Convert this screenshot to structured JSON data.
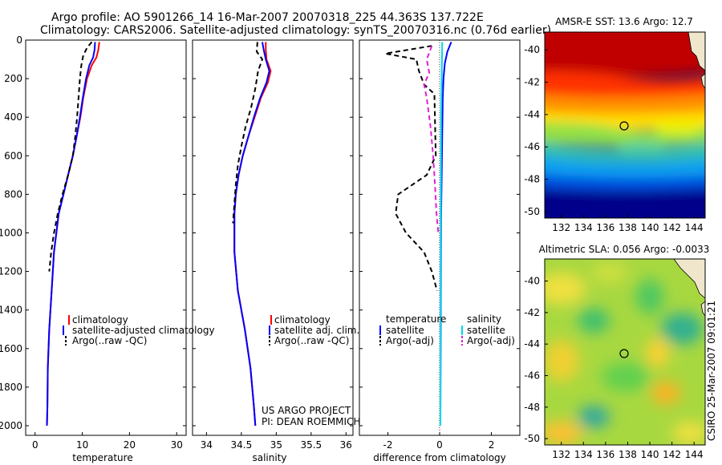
{
  "header": {
    "line1": "Argo profile: AO 5901266_14 16-Mar-2007 20070318_225 44.363S 137.722E",
    "line2": "Climatology: CARS2006. Satellite-adjusted climatology: synTS_20070316.nc (0.76d earlier)"
  },
  "colors": {
    "climatology": "#ff0000",
    "satellite": "#0000ff",
    "argo": "#000000",
    "salinity_sat": "#00d8e8",
    "salinity_argo": "#e020d0"
  },
  "chart_data": [
    {
      "type": "line",
      "name": "temperature-panel",
      "xlabel": "temperature",
      "ylabel": "",
      "xlim": [
        -2,
        32
      ],
      "ylim": [
        2050,
        0
      ],
      "xticks": [
        0,
        10,
        20,
        30
      ],
      "yticks": [
        0,
        200,
        400,
        600,
        800,
        1000,
        1200,
        1400,
        1600,
        1800,
        2000
      ],
      "series": [
        {
          "name": "climatology",
          "color": "#ff0000",
          "dash": "none",
          "x": [
            13.6,
            13.4,
            13.0,
            12.0,
            11.0,
            10.2,
            9.6,
            8.8,
            8.0,
            7.0,
            6.0,
            5.0,
            4.0,
            3.5,
            3.0,
            2.7,
            2.6,
            2.5
          ],
          "y": [
            10,
            50,
            90,
            130,
            200,
            300,
            400,
            500,
            600,
            700,
            800,
            900,
            1100,
            1300,
            1500,
            1700,
            1900,
            2000
          ]
        },
        {
          "name": "satellite-adjusted climatology",
          "color": "#0000ff",
          "dash": "none",
          "x": [
            12.7,
            12.6,
            12.3,
            11.5,
            10.8,
            10.1,
            9.5,
            8.8,
            8.0,
            7.0,
            6.0,
            5.0,
            4.0,
            3.5,
            3.0,
            2.7,
            2.6,
            2.5
          ],
          "y": [
            10,
            50,
            90,
            130,
            200,
            300,
            400,
            500,
            600,
            700,
            800,
            900,
            1100,
            1300,
            1500,
            1700,
            1900,
            2000
          ]
        },
        {
          "name": "Argo(..raw -QC)",
          "color": "#000000",
          "dash": "6,4",
          "x": [
            12.0,
            11.0,
            10.2,
            9.8,
            9.5,
            9.2,
            8.9,
            8.5,
            8.0,
            7.0,
            5.8,
            4.8,
            4.0,
            3.4,
            3.0
          ],
          "y": [
            10,
            40,
            80,
            130,
            200,
            300,
            400,
            500,
            600,
            700,
            800,
            900,
            1000,
            1100,
            1200
          ]
        }
      ],
      "legend": [
        "climatology",
        "satellite-adjusted climatology",
        "Argo(..raw -QC)"
      ]
    },
    {
      "type": "line",
      "name": "salinity-panel",
      "xlabel": "salinity",
      "ylabel": "",
      "xlim": [
        33.8,
        36.1
      ],
      "ylim": [
        2050,
        0
      ],
      "xticks": [
        34,
        34.5,
        35,
        35.5,
        36
      ],
      "xticklabels": [
        "34",
        "34.5",
        "35",
        "35.5",
        "36"
      ],
      "series": [
        {
          "name": "climatology",
          "color": "#ff0000",
          "dash": "none",
          "x": [
            34.85,
            34.85,
            34.86,
            34.92,
            34.88,
            34.78,
            34.69,
            34.6,
            34.52,
            34.46,
            34.42,
            34.4,
            34.4,
            34.45,
            34.55,
            34.63,
            34.68,
            34.7
          ],
          "y": [
            10,
            50,
            100,
            160,
            220,
            300,
            400,
            500,
            600,
            700,
            800,
            900,
            1100,
            1300,
            1500,
            1700,
            1900,
            2000
          ]
        },
        {
          "name": "satellite adj. clim.",
          "color": "#0000ff",
          "dash": "none",
          "x": [
            34.8,
            34.82,
            34.85,
            34.9,
            34.86,
            34.77,
            34.68,
            34.6,
            34.52,
            34.46,
            34.42,
            34.4,
            34.4,
            34.45,
            34.55,
            34.63,
            34.68,
            34.7
          ],
          "y": [
            10,
            50,
            100,
            160,
            220,
            300,
            400,
            500,
            600,
            700,
            800,
            900,
            1100,
            1300,
            1500,
            1700,
            1900,
            2000
          ]
        },
        {
          "name": "Argo(..raw -QC)",
          "color": "#000000",
          "dash": "6,4",
          "x": [
            34.73,
            34.72,
            34.8,
            34.74,
            34.7,
            34.64,
            34.56,
            34.5,
            34.45,
            34.42,
            34.4,
            34.38
          ],
          "y": [
            10,
            60,
            100,
            160,
            250,
            350,
            450,
            550,
            650,
            750,
            850,
            950
          ]
        }
      ],
      "legend": [
        "climatology",
        "satellite adj. clim.",
        "Argo(..raw -QC)"
      ]
    },
    {
      "type": "line",
      "name": "difference-panel",
      "xlabel": "difference from climatology",
      "ylabel": "",
      "xlim": [
        -3.1,
        3.1
      ],
      "ylim": [
        2050,
        0
      ],
      "xticks": [
        -2,
        0,
        2
      ],
      "series": [
        {
          "name": "temperature satellite",
          "color": "#0000ff",
          "dash": "none",
          "x": [
            0.45,
            0.3,
            0.2,
            0.15,
            0.12,
            0.1,
            0.08,
            0.06,
            0.05,
            0.04,
            0.03
          ],
          "y": [
            10,
            60,
            120,
            200,
            300,
            500,
            700,
            900,
            1200,
            1600,
            2000
          ]
        },
        {
          "name": "temperature Argo(-adj)",
          "color": "#000000",
          "dash": "6,4",
          "x": [
            -0.3,
            -2.1,
            -0.9,
            -0.8,
            -0.6,
            -0.2,
            -0.15,
            -0.5,
            -1.6,
            -1.7,
            -1.3,
            -0.6,
            -0.3,
            -0.1
          ],
          "y": [
            30,
            70,
            100,
            160,
            230,
            280,
            600,
            700,
            800,
            900,
            1000,
            1100,
            1200,
            1300
          ]
        },
        {
          "name": "salinity satellite",
          "color": "#00d8e8",
          "dash": "none",
          "x": [
            0.1,
            0.08,
            0.06,
            0.05,
            0.04,
            0.03,
            0.03
          ],
          "y": [
            10,
            200,
            400,
            800,
            1200,
            1600,
            2000
          ]
        },
        {
          "name": "salinity Argo(-adj)",
          "color": "#e020d0",
          "dash": "6,4",
          "x": [
            -0.3,
            -0.5,
            -0.4,
            -0.6,
            -0.5,
            -0.35,
            -0.25,
            -0.18,
            -0.12,
            -0.05
          ],
          "y": [
            30,
            100,
            170,
            230,
            300,
            450,
            600,
            750,
            900,
            1000
          ]
        }
      ],
      "legend_columns": [
        {
          "title": "temperature",
          "entries": [
            "satellite",
            "Argo(-adj)"
          ]
        },
        {
          "title": "salinity",
          "entries": [
            "satellite",
            "Argo(-adj)"
          ]
        }
      ]
    },
    {
      "type": "heatmap",
      "name": "sst-map",
      "title": "AMSR-E SST: 13.6 Argo: 12.7",
      "xticks": [
        132,
        134,
        136,
        138,
        140,
        142,
        144
      ],
      "yticks": [
        -40,
        -42,
        -44,
        -46,
        -48,
        -50
      ],
      "xlim": [
        130.5,
        145
      ],
      "ylim": [
        -50.4,
        -38.9
      ],
      "marker": {
        "lon": 137.72,
        "lat": -44.36
      }
    },
    {
      "type": "heatmap",
      "name": "sla-map",
      "title": "Altimetric SLA: 0.056 Argo: -0.0033",
      "xticks": [
        132,
        134,
        136,
        138,
        140,
        142,
        144
      ],
      "yticks": [
        -40,
        -42,
        -44,
        -46,
        -48,
        -50
      ],
      "xlim": [
        130.5,
        145
      ],
      "ylim": [
        -50.4,
        -38.6
      ],
      "marker": {
        "lon": 137.72,
        "lat": -44.36
      }
    }
  ],
  "footer": {
    "project": "US ARGO PROJECT",
    "pi": "PI: DEAN ROEMMICH",
    "stamp": "CSIRO 25-Mar-2007 09:01:21"
  }
}
